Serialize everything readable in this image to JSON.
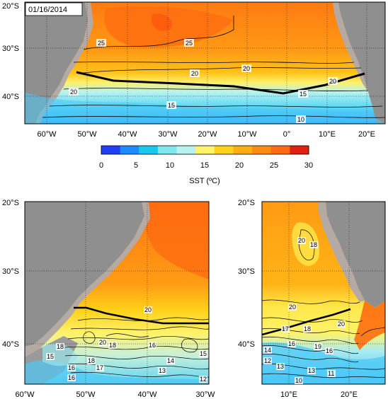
{
  "date_label": "01/16/2014",
  "colorbar": {
    "title": "SST (ºC)",
    "ticks": [
      "0",
      "5",
      "10",
      "15",
      "20",
      "25",
      "30"
    ],
    "stops": [
      "#1f3ff5",
      "#1a8cff",
      "#19c8f0",
      "#7fe6ee",
      "#b8f2f0",
      "#fff36a",
      "#ffd21a",
      "#ffad10",
      "#ff8a12",
      "#ff6a10",
      "#e02010"
    ]
  },
  "top_map": {
    "lat_labels": [
      "20°S",
      "30°S",
      "40°S"
    ],
    "lon_labels": [
      "60°W",
      "50°W",
      "40°W",
      "30°W",
      "20°W",
      "10°W",
      "0°",
      "10°E",
      "20°E"
    ],
    "contour_labels": [
      "25",
      "25",
      "20",
      "20",
      "20",
      "20",
      "15",
      "15",
      "10"
    ]
  },
  "bottom_left_map": {
    "lat_labels": [
      "20°S",
      "30°S",
      "40°S"
    ],
    "lon_labels": [
      "60°W",
      "50°W",
      "40°W",
      "30°W"
    ],
    "contour_labels": [
      "20",
      "18",
      "20",
      "18",
      "15",
      "16",
      "16",
      "17",
      "13",
      "14",
      "15",
      "12",
      "16",
      "18"
    ]
  },
  "bottom_right_map": {
    "lat_labels": [
      "20°S",
      "30°S",
      "40°S"
    ],
    "lon_labels": [
      "10°E",
      "20°E"
    ],
    "contour_labels": [
      "20",
      "18",
      "20",
      "17",
      "18",
      "20",
      "16",
      "14",
      "12",
      "13",
      "19",
      "16",
      "13",
      "11",
      "10"
    ]
  },
  "colors": {
    "land": "#8f8f8f",
    "shelf": "#b4aaa3",
    "warm": "#ff8a14",
    "mid": "#ffd21a",
    "cool": "#6fe0f2",
    "cold": "#2aa8ff",
    "transect": "#000000"
  }
}
